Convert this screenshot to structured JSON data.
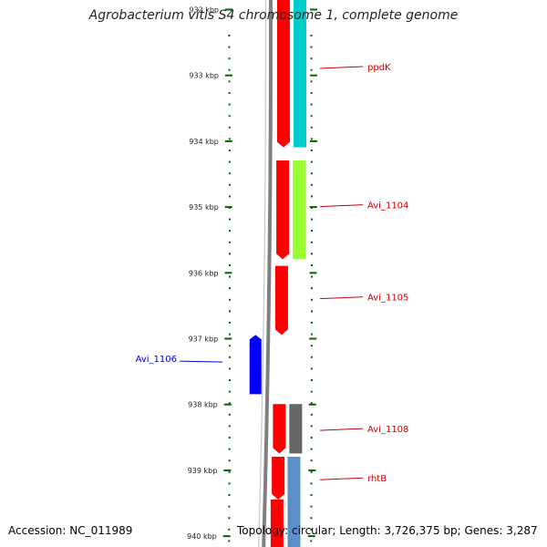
{
  "title": "Agrobacterium vitis S4 chromosome 1, complete genome",
  "footer": {
    "accession": "Accession: NC_011989",
    "topology": "Topology: circular; Length: 3,726,375 bp; Genes: 3,287"
  },
  "colors": {
    "forward_gene": "#ff0000",
    "reverse_gene": "#0000ff",
    "tick": "#006600",
    "backbone": "#808080",
    "label_forward": "#cc0000",
    "label_reverse": "#0000cc",
    "cog_cyan": "#00cccc",
    "cog_green": "#99ff33",
    "cog_gray": "#666666",
    "cog_blue": "#5b8fc7"
  },
  "axis": {
    "unit": "kbp",
    "ticks": [
      {
        "kbp": 932,
        "label": "932 kbp"
      },
      {
        "kbp": 933,
        "label": "933 kbp"
      },
      {
        "kbp": 934,
        "label": "934 kbp"
      },
      {
        "kbp": 935,
        "label": "935 kbp"
      },
      {
        "kbp": 936,
        "label": "936 kbp"
      },
      {
        "kbp": 937,
        "label": "937 kbp"
      },
      {
        "kbp": 938,
        "label": "938 kbp"
      },
      {
        "kbp": 939,
        "label": "939 kbp"
      },
      {
        "kbp": 940,
        "label": "940 kbp"
      }
    ]
  },
  "genes": [
    {
      "name": "ppdK",
      "strand": "forward",
      "start_kbp": 931.8,
      "end_kbp": 934.1,
      "cog_color": "#00cccc",
      "cog_start_kbp": 931.8,
      "cog_end_kbp": 934.1,
      "label_kbp": 932.9
    },
    {
      "name": "Avi_1104",
      "strand": "forward",
      "start_kbp": 934.3,
      "end_kbp": 935.8,
      "cog_color": "#99ff33",
      "cog_start_kbp": 934.3,
      "cog_end_kbp": 935.8,
      "label_kbp": 935.0
    },
    {
      "name": "Avi_1105",
      "strand": "forward",
      "start_kbp": 935.9,
      "end_kbp": 936.95,
      "cog_color": "",
      "label_kbp": 936.4
    },
    {
      "name": "Avi_1106",
      "strand": "reverse",
      "start_kbp": 936.95,
      "end_kbp": 937.85,
      "cog_color": "",
      "label_kbp": 937.32
    },
    {
      "name": "Avi_1108",
      "strand": "forward",
      "start_kbp": 938.0,
      "end_kbp": 938.75,
      "cog_color": "#666666",
      "cog_start_kbp": 938.0,
      "cog_end_kbp": 938.75,
      "label_kbp": 938.4
    },
    {
      "name": "rhtB",
      "strand": "forward",
      "start_kbp": 938.8,
      "end_kbp": 939.45,
      "cog_color": "#5b8fc7",
      "cog_start_kbp": 938.8,
      "cog_end_kbp": 940.3,
      "label_kbp": 939.15
    },
    {
      "name": "",
      "strand": "forward",
      "start_kbp": 939.45,
      "end_kbp": 940.3,
      "cog_color": "",
      "label_kbp": null
    }
  ]
}
